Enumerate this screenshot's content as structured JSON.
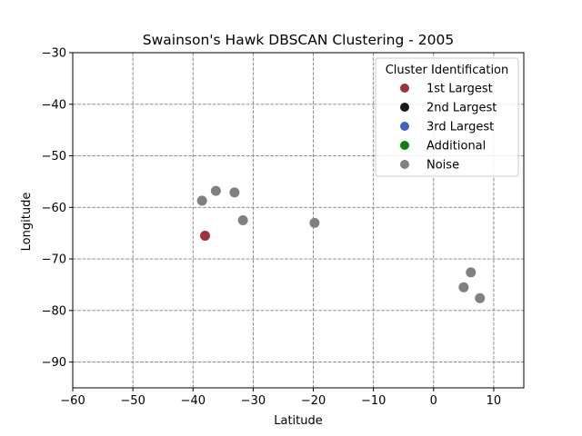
{
  "chart_data": {
    "type": "scatter",
    "title": "Swainson's Hawk DBSCAN Clustering - 2005",
    "xlabel": "Latitude",
    "ylabel": "Longitude",
    "xlim": [
      -60,
      15
    ],
    "ylim": [
      -95,
      -30
    ],
    "xticks": [
      -60,
      -50,
      -40,
      -30,
      -20,
      -10,
      0,
      10
    ],
    "yticks": [
      -30,
      -40,
      -50,
      -60,
      -70,
      -80,
      -90
    ],
    "xtick_labels": [
      "−60",
      "−50",
      "−40",
      "−30",
      "−20",
      "−10",
      "0",
      "10"
    ],
    "ytick_labels": [
      "−30",
      "−40",
      "−50",
      "−60",
      "−70",
      "−80",
      "−90"
    ],
    "grid": true,
    "legend": {
      "title": "Cluster Identification",
      "placement": "top-right",
      "entries": [
        {
          "label": "1st Largest",
          "color": "#a0333a"
        },
        {
          "label": "2nd Largest",
          "color": "#1a1a1a"
        },
        {
          "label": "3rd Largest",
          "color": "#4262c0"
        },
        {
          "label": "Additional",
          "color": "#118011"
        },
        {
          "label": "Noise",
          "color": "#808080"
        }
      ]
    },
    "series": [
      {
        "cluster": "1st Largest",
        "color": "#a0333a",
        "points": [
          {
            "x": -38,
            "y": -65.5
          }
        ]
      },
      {
        "cluster": "Noise",
        "color": "#808080",
        "points": [
          {
            "x": -38.5,
            "y": -58.7
          },
          {
            "x": -36.2,
            "y": -56.8
          },
          {
            "x": -33.1,
            "y": -57.1
          },
          {
            "x": -31.7,
            "y": -62.5
          },
          {
            "x": -19.8,
            "y": -63.0
          },
          {
            "x": 6.2,
            "y": -72.6
          },
          {
            "x": 5.0,
            "y": -75.5
          },
          {
            "x": 7.7,
            "y": -77.6
          }
        ]
      }
    ]
  }
}
